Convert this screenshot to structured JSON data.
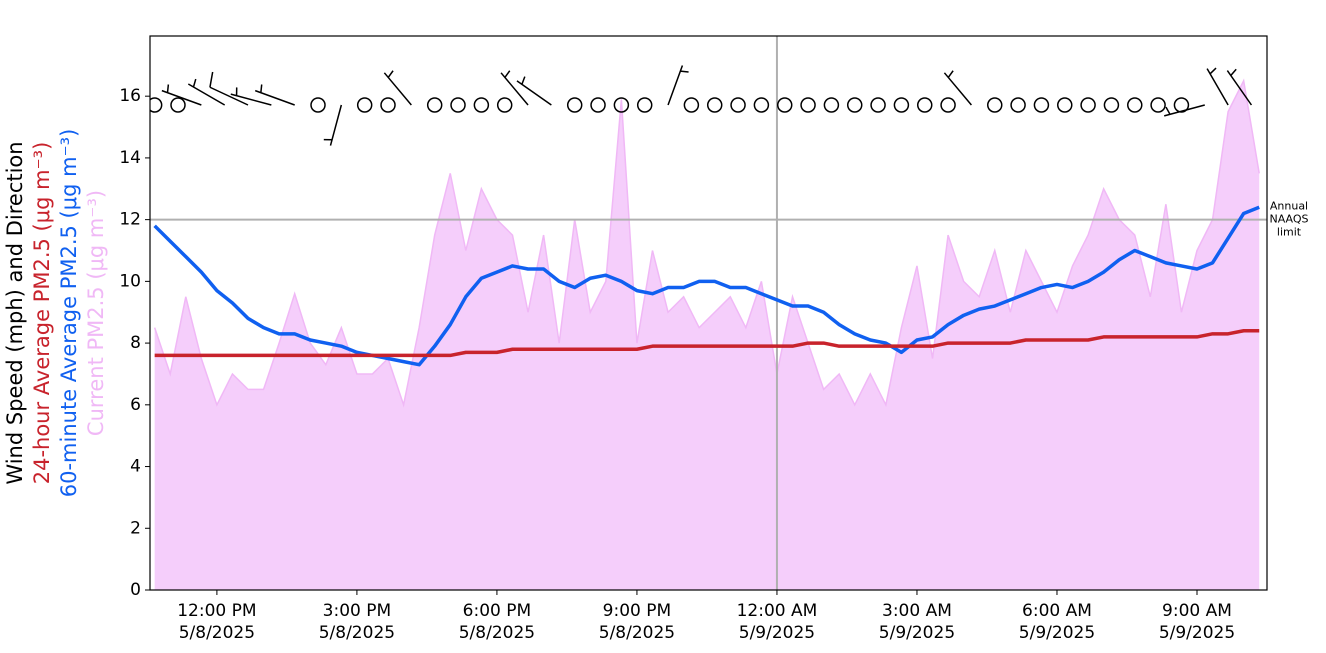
{
  "chart_data": {
    "type": "line",
    "xlim": [
      "2025-05-08T10:34",
      "2025-05-09T10:30"
    ],
    "xticks": [
      {
        "value": "2025-05-08T12:00",
        "label": [
          "12:00 PM",
          "5/8/2025"
        ]
      },
      {
        "value": "2025-05-08T15:00",
        "label": [
          "3:00 PM",
          "5/8/2025"
        ]
      },
      {
        "value": "2025-05-08T18:00",
        "label": [
          "6:00 PM",
          "5/8/2025"
        ]
      },
      {
        "value": "2025-05-08T21:00",
        "label": [
          "9:00 PM",
          "5/8/2025"
        ]
      },
      {
        "value": "2025-05-09T00:00",
        "label": [
          "12:00 AM",
          "5/9/2025"
        ]
      },
      {
        "value": "2025-05-09T03:00",
        "label": [
          "3:00 AM",
          "5/9/2025"
        ]
      },
      {
        "value": "2025-05-09T06:00",
        "label": [
          "6:00 AM",
          "5/9/2025"
        ]
      },
      {
        "value": "2025-05-09T09:00",
        "label": [
          "9:00 AM",
          "5/9/2025"
        ]
      }
    ],
    "ylim": [
      0,
      17.95
    ],
    "yticks": [
      0,
      2,
      4,
      6,
      8,
      10,
      12,
      14,
      16
    ],
    "hlines": [
      {
        "value": 12,
        "color": "#b0b0b0",
        "label": [
          "Annual",
          "NAAQS",
          "limit"
        ]
      }
    ],
    "vlines": [
      "2025-05-09T00:00"
    ],
    "x": [
      "2025-05-08T10:40",
      "2025-05-08T11:00",
      "2025-05-08T11:20",
      "2025-05-08T11:40",
      "2025-05-08T12:00",
      "2025-05-08T12:20",
      "2025-05-08T12:40",
      "2025-05-08T13:00",
      "2025-05-08T13:20",
      "2025-05-08T13:40",
      "2025-05-08T14:00",
      "2025-05-08T14:20",
      "2025-05-08T14:40",
      "2025-05-08T15:00",
      "2025-05-08T15:20",
      "2025-05-08T15:40",
      "2025-05-08T16:00",
      "2025-05-08T16:20",
      "2025-05-08T16:40",
      "2025-05-08T17:00",
      "2025-05-08T17:20",
      "2025-05-08T17:40",
      "2025-05-08T18:00",
      "2025-05-08T18:20",
      "2025-05-08T18:40",
      "2025-05-08T19:00",
      "2025-05-08T19:20",
      "2025-05-08T19:40",
      "2025-05-08T20:00",
      "2025-05-08T20:20",
      "2025-05-08T20:40",
      "2025-05-08T21:00",
      "2025-05-08T21:20",
      "2025-05-08T21:40",
      "2025-05-08T22:00",
      "2025-05-08T22:20",
      "2025-05-08T22:40",
      "2025-05-08T23:00",
      "2025-05-08T23:20",
      "2025-05-08T23:40",
      "2025-05-09T00:00",
      "2025-05-09T00:20",
      "2025-05-09T00:40",
      "2025-05-09T01:00",
      "2025-05-09T01:20",
      "2025-05-09T01:40",
      "2025-05-09T02:00",
      "2025-05-09T02:20",
      "2025-05-09T02:40",
      "2025-05-09T03:00",
      "2025-05-09T03:20",
      "2025-05-09T03:40",
      "2025-05-09T04:00",
      "2025-05-09T04:20",
      "2025-05-09T04:40",
      "2025-05-09T05:00",
      "2025-05-09T05:20",
      "2025-05-09T05:40",
      "2025-05-09T06:00",
      "2025-05-09T06:20",
      "2025-05-09T06:40",
      "2025-05-09T07:00",
      "2025-05-09T07:20",
      "2025-05-09T07:40",
      "2025-05-09T08:00",
      "2025-05-09T08:20",
      "2025-05-09T08:40",
      "2025-05-09T09:00",
      "2025-05-09T09:20",
      "2025-05-09T09:40",
      "2025-05-09T10:00",
      "2025-05-09T10:20"
    ],
    "series": [
      {
        "name": "Current PM2.5 (μg m⁻³)",
        "type": "area",
        "color": "#f0b8f6",
        "fill": "#f5cefb",
        "values": [
          8.5,
          7.0,
          9.5,
          7.5,
          6.0,
          7.0,
          6.5,
          6.5,
          8.0,
          9.6,
          8.0,
          7.3,
          8.5,
          7.0,
          7.0,
          7.5,
          6.0,
          8.5,
          11.5,
          13.5,
          11.0,
          13.0,
          12.0,
          11.5,
          9.0,
          11.5,
          8.0,
          12.0,
          9.0,
          10.0,
          15.9,
          8.0,
          11.0,
          9.0,
          9.5,
          8.5,
          9.0,
          9.5,
          8.5,
          10.0,
          7.0,
          9.5,
          8.0,
          6.5,
          7.0,
          6.0,
          7.0,
          6.0,
          8.5,
          10.5,
          7.5,
          11.5,
          10.0,
          9.5,
          11.0,
          9.0,
          11.0,
          10.0,
          9.0,
          10.5,
          11.5,
          13.0,
          12.0,
          11.5,
          9.5,
          12.5,
          9.0,
          11.0,
          12.0,
          15.5,
          16.5,
          13.5
        ]
      },
      {
        "name": "60-minute Average PM2.5 (μg m⁻³)",
        "type": "line",
        "color": "#1060f0",
        "values": [
          11.8,
          11.3,
          10.8,
          10.3,
          9.7,
          9.3,
          8.8,
          8.5,
          8.3,
          8.3,
          8.1,
          8.0,
          7.9,
          7.7,
          7.6,
          7.5,
          7.4,
          7.3,
          7.9,
          8.6,
          9.5,
          10.1,
          10.3,
          10.5,
          10.4,
          10.4,
          10.0,
          9.8,
          10.1,
          10.2,
          10.0,
          9.7,
          9.6,
          9.8,
          9.8,
          10.0,
          10.0,
          9.8,
          9.8,
          9.6,
          9.4,
          9.2,
          9.2,
          9.0,
          8.6,
          8.3,
          8.1,
          8.0,
          7.7,
          8.1,
          8.2,
          8.6,
          8.9,
          9.1,
          9.2,
          9.4,
          9.6,
          9.8,
          9.9,
          9.8,
          10.0,
          10.3,
          10.7,
          11.0,
          10.8,
          10.6,
          10.5,
          10.4,
          10.6,
          11.4,
          12.2,
          12.4
        ]
      },
      {
        "name": "24-hour Average PM2.5 (μg m⁻³)",
        "type": "line",
        "color": "#c8232c",
        "values": [
          7.6,
          7.6,
          7.6,
          7.6,
          7.6,
          7.6,
          7.6,
          7.6,
          7.6,
          7.6,
          7.6,
          7.6,
          7.6,
          7.6,
          7.6,
          7.6,
          7.6,
          7.6,
          7.6,
          7.6,
          7.7,
          7.7,
          7.7,
          7.8,
          7.8,
          7.8,
          7.8,
          7.8,
          7.8,
          7.8,
          7.8,
          7.8,
          7.9,
          7.9,
          7.9,
          7.9,
          7.9,
          7.9,
          7.9,
          7.9,
          7.9,
          7.9,
          8.0,
          8.0,
          7.9,
          7.9,
          7.9,
          7.9,
          7.9,
          7.9,
          7.9,
          8.0,
          8.0,
          8.0,
          8.0,
          8.0,
          8.1,
          8.1,
          8.1,
          8.1,
          8.1,
          8.2,
          8.2,
          8.2,
          8.2,
          8.2,
          8.2,
          8.2,
          8.3,
          8.3,
          8.4,
          8.4
        ]
      }
    ],
    "wind": {
      "name": "Wind Speed (mph) and Direction",
      "color": "#000000",
      "x": [
        "2025-05-08T10:40",
        "2025-05-08T11:10",
        "2025-05-08T11:40",
        "2025-05-08T12:10",
        "2025-05-08T12:40",
        "2025-05-08T13:10",
        "2025-05-08T13:40",
        "2025-05-08T14:10",
        "2025-05-08T14:40",
        "2025-05-08T15:10",
        "2025-05-08T15:40",
        "2025-05-08T16:10",
        "2025-05-08T16:40",
        "2025-05-08T17:10",
        "2025-05-08T17:40",
        "2025-05-08T18:10",
        "2025-05-08T18:40",
        "2025-05-08T19:10",
        "2025-05-08T19:40",
        "2025-05-08T20:10",
        "2025-05-08T20:40",
        "2025-05-08T21:10",
        "2025-05-08T21:40",
        "2025-05-08T22:10",
        "2025-05-08T22:40",
        "2025-05-08T23:10",
        "2025-05-08T23:40",
        "2025-05-09T00:10",
        "2025-05-09T00:40",
        "2025-05-09T01:10",
        "2025-05-09T01:40",
        "2025-05-09T02:10",
        "2025-05-09T02:40",
        "2025-05-09T03:10",
        "2025-05-09T03:40",
        "2025-05-09T04:10",
        "2025-05-09T04:40",
        "2025-05-09T05:10",
        "2025-05-09T05:40",
        "2025-05-09T06:10",
        "2025-05-09T06:40",
        "2025-05-09T07:10",
        "2025-05-09T07:40",
        "2025-05-09T08:10",
        "2025-05-09T08:40",
        "2025-05-09T09:10",
        "2025-05-09T09:40",
        "2025-05-09T10:10"
      ],
      "speed": [
        0,
        0,
        5,
        5,
        10,
        5,
        5,
        0,
        5,
        0,
        0,
        5,
        0,
        0,
        0,
        0,
        5,
        5,
        0,
        0,
        0,
        0,
        5,
        0,
        0,
        0,
        0,
        0,
        0,
        0,
        0,
        0,
        0,
        0,
        0,
        5,
        0,
        0,
        0,
        0,
        0,
        0,
        0,
        0,
        0,
        5,
        5,
        5
      ],
      "direction": [
        null,
        null,
        290,
        300,
        295,
        285,
        290,
        null,
        195,
        null,
        null,
        320,
        null,
        null,
        null,
        null,
        320,
        305,
        null,
        null,
        null,
        null,
        20,
        null,
        null,
        null,
        null,
        null,
        null,
        null,
        null,
        null,
        null,
        null,
        null,
        320,
        null,
        null,
        null,
        null,
        null,
        null,
        null,
        null,
        null,
        255,
        330,
        325
      ]
    }
  }
}
